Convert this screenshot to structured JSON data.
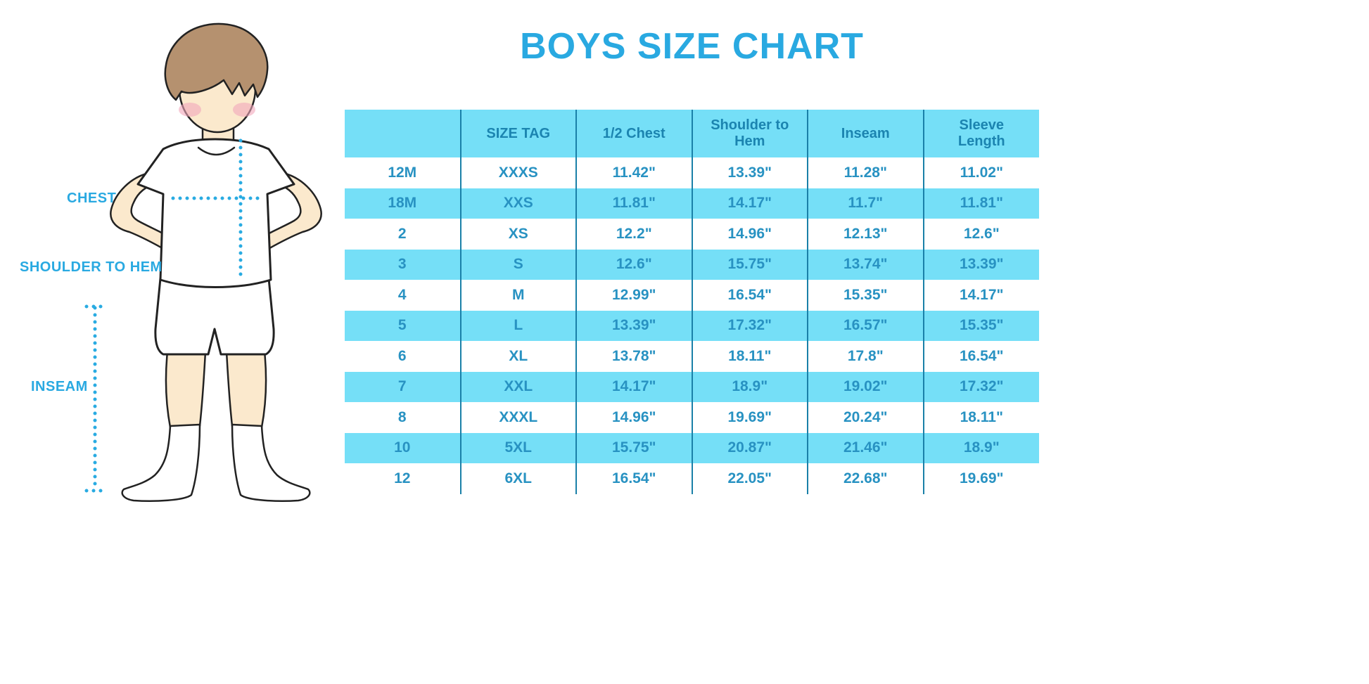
{
  "title": "BOYS SIZE CHART",
  "figure_labels": {
    "chest": "CHEST",
    "shoulder_to_hem": "SHOULDER TO HEM",
    "inseam": "INSEAM"
  },
  "chart_data": {
    "type": "table",
    "title": "BOYS SIZE CHART",
    "columns": [
      "",
      "SIZE TAG",
      "1/2 Chest",
      "Shoulder to Hem",
      "Inseam",
      "Sleeve Length"
    ],
    "rows": [
      [
        "12M",
        "XXXS",
        "11.42\"",
        "13.39\"",
        "11.28\"",
        "11.02\""
      ],
      [
        "18M",
        "XXS",
        "11.81\"",
        "14.17\"",
        "11.7\"",
        "11.81\""
      ],
      [
        "2",
        "XS",
        "12.2\"",
        "14.96\"",
        "12.13\"",
        "12.6\""
      ],
      [
        "3",
        "S",
        "12.6\"",
        "15.75\"",
        "13.74\"",
        "13.39\""
      ],
      [
        "4",
        "M",
        "12.99\"",
        "16.54\"",
        "15.35\"",
        "14.17\""
      ],
      [
        "5",
        "L",
        "13.39\"",
        "17.32\"",
        "16.57\"",
        "15.35\""
      ],
      [
        "6",
        "XL",
        "13.78\"",
        "18.11\"",
        "17.8\"",
        "16.54\""
      ],
      [
        "7",
        "XXL",
        "14.17\"",
        "18.9\"",
        "19.02\"",
        "17.32\""
      ],
      [
        "8",
        "XXXL",
        "14.96\"",
        "19.69\"",
        "20.24\"",
        "18.11\""
      ],
      [
        "10",
        "5XL",
        "15.75\"",
        "20.87\"",
        "21.46\"",
        "18.9\""
      ],
      [
        "12",
        "6XL",
        "16.54\"",
        "22.05\"",
        "22.68\"",
        "19.69\""
      ]
    ],
    "layout": {
      "striping": "header and alternating rows light-cyan, others white",
      "gridlines": "vertical column dividers only, no outer border"
    }
  },
  "colors": {
    "accent": "#29A9E1",
    "band": "#75DFF7",
    "grid": "#1A80A8",
    "head_text": "#1B84B0",
    "cell_text": "#2892C2",
    "dotted_line": "#29ABE2"
  }
}
